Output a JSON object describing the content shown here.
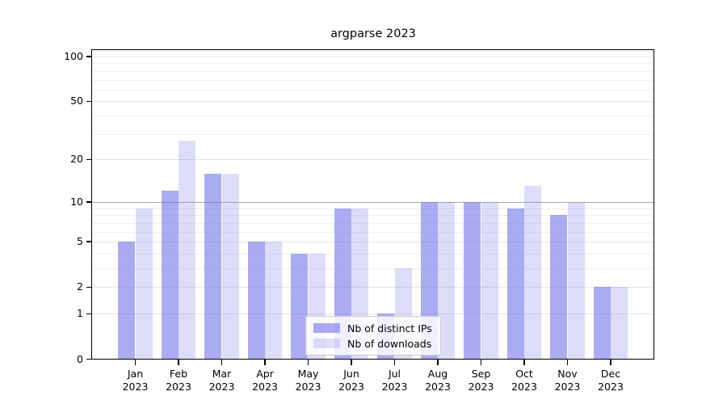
{
  "chart_data": {
    "type": "bar",
    "title": "argparse 2023",
    "categories": [
      "Jan",
      "Feb",
      "Mar",
      "Apr",
      "May",
      "Jun",
      "Jul",
      "Aug",
      "Sep",
      "Oct",
      "Nov",
      "Dec"
    ],
    "category_year": "2023",
    "series": [
      {
        "name": "Nb of distinct IPs",
        "values": [
          5,
          12,
          16,
          5,
          4,
          9,
          1,
          10,
          10,
          9,
          8,
          2
        ],
        "color": "rgba(102,102,232,0.55)"
      },
      {
        "name": "Nb of downloads",
        "values": [
          9,
          27,
          16,
          5,
          4,
          9,
          3,
          10,
          10,
          13,
          10,
          2
        ],
        "color": "rgba(102,102,232,0.22)"
      }
    ],
    "yscale": "log1p",
    "ylim": [
      0,
      110
    ],
    "y_ticks": [
      0,
      1,
      2,
      5,
      10,
      20,
      50,
      100
    ],
    "y_minor_ticks": [
      3,
      4,
      6,
      7,
      8,
      9,
      30,
      40,
      60,
      70,
      80,
      90
    ],
    "emphasis_line_value": 10,
    "grid": "on",
    "legend_position": "lower center inside",
    "colors": {
      "major_grid": "#e4e4e4",
      "minor_grid": "#efefef",
      "emphasis_line": "rgba(125,125,125,0.65)",
      "axis": "#000000",
      "legend_border": "#cccccc"
    }
  }
}
